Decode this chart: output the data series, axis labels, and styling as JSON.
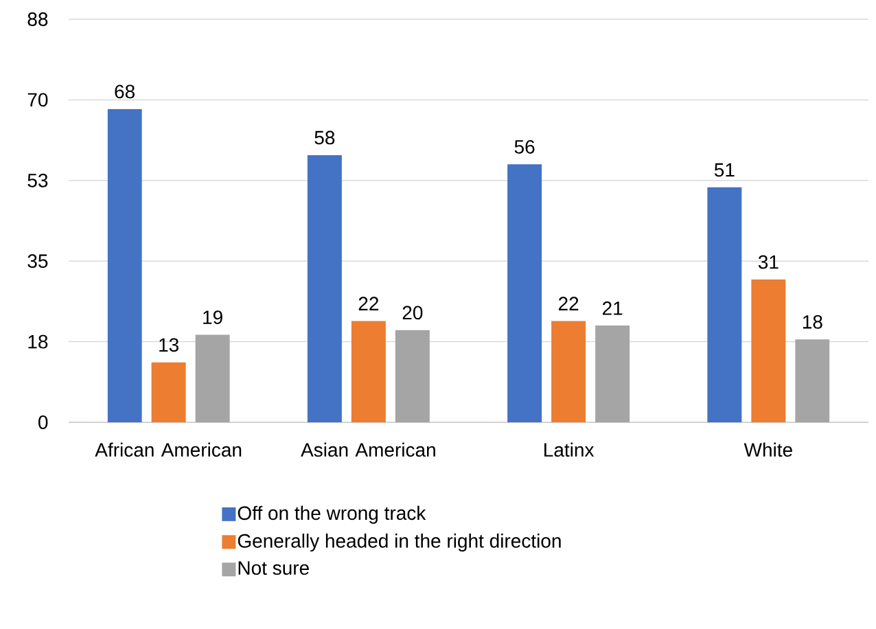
{
  "chart_data": {
    "type": "bar",
    "categories": [
      "African American",
      "Asian American",
      "Latinx",
      "White"
    ],
    "series": [
      {
        "name": "Off on the wrong track",
        "color": "#4472c4",
        "values": [
          68,
          58,
          56,
          51
        ]
      },
      {
        "name": "Generally headed in the right direction",
        "color": "#ed7d31",
        "values": [
          13,
          22,
          22,
          31
        ]
      },
      {
        "name": "Not sure",
        "color": "#a5a5a5",
        "values": [
          19,
          20,
          21,
          18
        ]
      }
    ],
    "ylim": [
      0,
      87.5
    ],
    "yticks": [
      0,
      {
        "value": 17.5,
        "label": "18"
      },
      35,
      {
        "value": 52.5,
        "label": "53"
      },
      70,
      {
        "value": 87.5,
        "label": "88"
      }
    ],
    "grid": "y",
    "data_labels": true,
    "legend": "bottom"
  }
}
